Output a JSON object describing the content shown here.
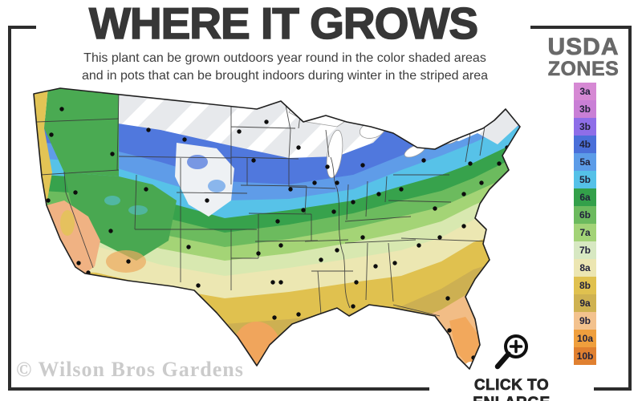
{
  "title": "WHERE IT GROWS",
  "subtitle": {
    "line1": "This plant can be grown outdoors year round in the color shaded areas",
    "line2": "and in pots that can be brought indoors during winter in the striped area"
  },
  "legend": {
    "heading_top": "USDA",
    "heading_bottom": "ZONES",
    "zones": [
      {
        "label": "3a",
        "color": "#d689d4"
      },
      {
        "label": "3b",
        "color": "#c97fd6"
      },
      {
        "label": "3b",
        "color": "#8e6ee8"
      },
      {
        "label": "4b",
        "color": "#4a6fd9"
      },
      {
        "label": "5a",
        "color": "#5c9ce8"
      },
      {
        "label": "5b",
        "color": "#55c1e8"
      },
      {
        "label": "6a",
        "color": "#33a04a"
      },
      {
        "label": "6b",
        "color": "#6cba5e"
      },
      {
        "label": "7a",
        "color": "#a3d377"
      },
      {
        "label": "7b",
        "color": "#d7e8c2"
      },
      {
        "label": "8a",
        "color": "#ece6b2"
      },
      {
        "label": "8b",
        "color": "#e0c14f"
      },
      {
        "label": "9a",
        "color": "#cfb251"
      },
      {
        "label": "9b",
        "color": "#f3c28e"
      },
      {
        "label": "10a",
        "color": "#ef9f3d"
      },
      {
        "label": "10b",
        "color": "#e08030"
      }
    ]
  },
  "map": {
    "striped_area_base_color": "#e7e9ec",
    "stripe_color": "#ffffff",
    "city_dot_color": "#0d0d0d",
    "outline_color": "#1f1f1f"
  },
  "watermark": "© Wilson Bros Gardens",
  "enlarge_label": "CLICK TO ENLARGE"
}
